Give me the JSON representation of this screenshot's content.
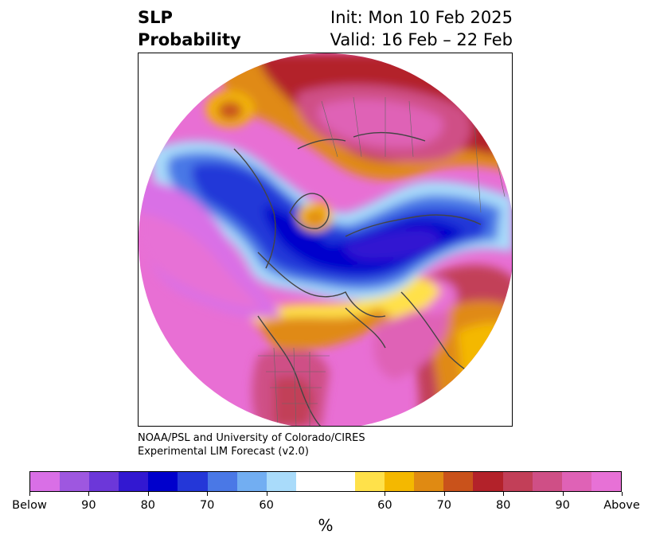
{
  "title": {
    "variable": "SLP",
    "product": "Probability",
    "init": "Init: Mon 10 Feb 2025",
    "valid": "Valid: 16 Feb – 22 Feb"
  },
  "credit": {
    "line1": "NOAA/PSL and University of Colorado/CIRES",
    "line2": "Experimental LIM Forecast (v2.0)"
  },
  "colorbar": {
    "colors": [
      "#d96fe6",
      "#9e57e0",
      "#6c37d9",
      "#3218d1",
      "#0000cc",
      "#2437d8",
      "#4a78e6",
      "#72aef2",
      "#a9dbfa",
      "#ffffff",
      "#ffffff",
      "#ffe14a",
      "#f4b800",
      "#e08a12",
      "#c9521b",
      "#b3222a",
      "#c23f58",
      "#cf4f86",
      "#df62b6",
      "#e771d6"
    ],
    "tick_labels": [
      "Below",
      "90",
      "80",
      "70",
      "60",
      "60",
      "70",
      "80",
      "90",
      "Above"
    ],
    "unit": "%"
  },
  "map": {
    "projection": "north polar stereographic",
    "region": "Northern Hemisphere"
  }
}
